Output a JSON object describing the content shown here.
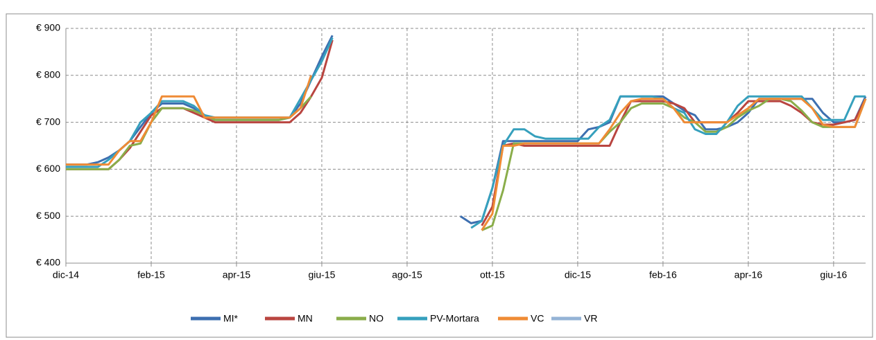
{
  "chart_data": {
    "type": "line",
    "categories": [
      "dic-14",
      null,
      null,
      null,
      null,
      null,
      null,
      null,
      "feb-15",
      null,
      null,
      null,
      null,
      null,
      null,
      null,
      "apr-15",
      null,
      null,
      null,
      null,
      null,
      null,
      null,
      "giu-15",
      null,
      null,
      null,
      null,
      null,
      null,
      null,
      "ago-15",
      null,
      null,
      null,
      null,
      null,
      null,
      null,
      "ott-15",
      null,
      null,
      null,
      null,
      null,
      null,
      null,
      "dic-15",
      null,
      null,
      null,
      null,
      null,
      null,
      null,
      "feb-16",
      null,
      null,
      null,
      null,
      null,
      null,
      null,
      "apr-16",
      null,
      null,
      null,
      null,
      null,
      null,
      null,
      "giu-16",
      null,
      null,
      null
    ],
    "series": [
      {
        "name": "MI*",
        "color": "#3d6fb0",
        "values": [
          610,
          610,
          610,
          615,
          625,
          640,
          660,
          690,
          720,
          740,
          740,
          740,
          730,
          715,
          705,
          705,
          705,
          705,
          705,
          705,
          705,
          710,
          740,
          790,
          840,
          885,
          null,
          null,
          null,
          null,
          null,
          null,
          null,
          null,
          null,
          null,
          null,
          500,
          485,
          490,
          560,
          660,
          660,
          660,
          660,
          660,
          660,
          660,
          660,
          685,
          690,
          700,
          755,
          755,
          755,
          755,
          755,
          740,
          725,
          715,
          685,
          685,
          690,
          700,
          720,
          750,
          750,
          750,
          750,
          750,
          750,
          720,
          700,
          700,
          705,
          755
        ]
      },
      {
        "name": "MN",
        "color": "#b94540",
        "values": [
          600,
          600,
          600,
          600,
          600,
          620,
          645,
          680,
          715,
          730,
          730,
          730,
          720,
          710,
          700,
          700,
          700,
          700,
          700,
          700,
          700,
          700,
          720,
          755,
          795,
          875,
          null,
          null,
          null,
          null,
          null,
          null,
          null,
          null,
          null,
          null,
          null,
          null,
          null,
          480,
          520,
          650,
          655,
          650,
          650,
          650,
          650,
          650,
          650,
          650,
          650,
          650,
          700,
          745,
          745,
          745,
          745,
          740,
          730,
          700,
          700,
          700,
          700,
          720,
          745,
          745,
          745,
          745,
          735,
          720,
          700,
          695,
          695,
          700,
          705,
          750
        ]
      },
      {
        "name": "NO",
        "color": "#8aad4a",
        "values": [
          600,
          600,
          600,
          600,
          600,
          620,
          650,
          655,
          700,
          730,
          730,
          730,
          725,
          715,
          705,
          705,
          705,
          705,
          705,
          705,
          705,
          710,
          730,
          755,
          null,
          null,
          null,
          null,
          null,
          null,
          null,
          null,
          null,
          null,
          null,
          null,
          null,
          null,
          null,
          470,
          480,
          555,
          655,
          655,
          655,
          655,
          655,
          655,
          655,
          655,
          655,
          680,
          700,
          730,
          740,
          740,
          740,
          730,
          710,
          700,
          680,
          680,
          690,
          710,
          725,
          735,
          750,
          750,
          745,
          725,
          700,
          690,
          690,
          690,
          690,
          750
        ]
      },
      {
        "name": "PV-Mortara",
        "color": "#36a0bd",
        "values": [
          605,
          605,
          605,
          605,
          620,
          640,
          660,
          700,
          720,
          745,
          745,
          745,
          735,
          715,
          710,
          710,
          710,
          710,
          710,
          710,
          710,
          710,
          750,
          790,
          830,
          880,
          null,
          null,
          null,
          null,
          null,
          null,
          null,
          null,
          null,
          null,
          null,
          null,
          475,
          490,
          560,
          650,
          685,
          685,
          670,
          665,
          665,
          665,
          665,
          665,
          690,
          705,
          755,
          755,
          755,
          755,
          750,
          730,
          720,
          685,
          675,
          675,
          700,
          735,
          755,
          755,
          755,
          755,
          755,
          755,
          730,
          705,
          705,
          705,
          755,
          755
        ]
      },
      {
        "name": "VC",
        "color": "#ef8b35",
        "values": [
          610,
          610,
          610,
          610,
          610,
          640,
          660,
          660,
          700,
          755,
          755,
          755,
          755,
          710,
          710,
          710,
          710,
          710,
          710,
          710,
          710,
          710,
          730,
          800,
          null,
          null,
          null,
          null,
          null,
          null,
          null,
          null,
          null,
          null,
          null,
          null,
          null,
          null,
          null,
          470,
          505,
          650,
          650,
          655,
          655,
          655,
          655,
          655,
          655,
          655,
          655,
          685,
          720,
          745,
          750,
          750,
          750,
          730,
          700,
          700,
          700,
          700,
          700,
          715,
          730,
          750,
          750,
          750,
          750,
          750,
          730,
          695,
          690,
          690,
          690,
          750
        ]
      },
      {
        "name": "VR",
        "color": "#94b3d6",
        "values": [
          null,
          null,
          null,
          null,
          null,
          null,
          null,
          null,
          null,
          null,
          null,
          null,
          null,
          null,
          null,
          null,
          null,
          null,
          null,
          null,
          null,
          null,
          null,
          null,
          null,
          null,
          null,
          null,
          null,
          null,
          null,
          null,
          null,
          null,
          null,
          null,
          null,
          null,
          null,
          null,
          null,
          null,
          null,
          null,
          null,
          null,
          null,
          null,
          null,
          null,
          null,
          null,
          null,
          null,
          null,
          null,
          null,
          null,
          null,
          null,
          null,
          null,
          null,
          null,
          null,
          null,
          null,
          null,
          null,
          null,
          null,
          null,
          null,
          null,
          null,
          null
        ]
      }
    ],
    "ylim": [
      400,
      900
    ],
    "yticks": [
      {
        "value": 400,
        "label": "€ 400"
      },
      {
        "value": 500,
        "label": "€ 500"
      },
      {
        "value": 600,
        "label": "€ 600"
      },
      {
        "value": 700,
        "label": "€ 700"
      },
      {
        "value": 800,
        "label": "€ 800"
      },
      {
        "value": 900,
        "label": "€ 900"
      }
    ],
    "grid": true,
    "legend": "bottom"
  }
}
